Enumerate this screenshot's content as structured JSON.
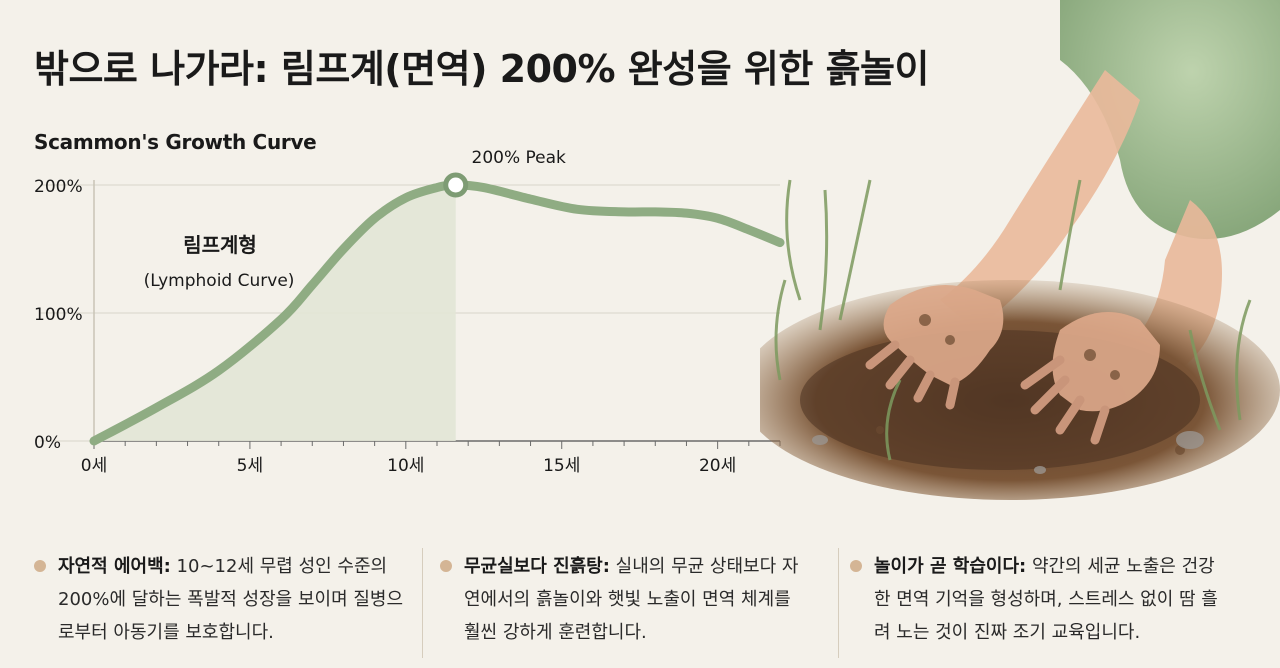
{
  "header": {
    "title": "밖으로 나가라: 림프계(면역) 200% 완성을 위한 흙놀이"
  },
  "chart_data": {
    "type": "line",
    "title": "Scammon's Growth Curve",
    "x_ticks": [
      "0세",
      "5세",
      "10세",
      "15세",
      "20세"
    ],
    "y_ticks": [
      "0%",
      "100%",
      "200%"
    ],
    "xlim": [
      0,
      22
    ],
    "ylim": [
      0,
      200
    ],
    "series": [
      {
        "name": "림프계형",
        "name_en": "(Lymphoid Curve)",
        "x": [
          0,
          2,
          4,
          6,
          7,
          8,
          9,
          10,
          11,
          11.6,
          12.5,
          14,
          15.5,
          17,
          18,
          19,
          20,
          21,
          22
        ],
        "y": [
          0,
          26,
          55,
          95,
          122,
          150,
          174,
          190,
          198,
          200,
          198,
          189,
          181,
          179,
          179,
          178,
          174,
          165,
          155
        ]
      }
    ],
    "peak": {
      "x": 11.6,
      "y": 200,
      "label": "200% Peak"
    },
    "grid": true
  },
  "bullets": [
    {
      "head": "자연적 에어백:",
      "body": " 10~12세 무렵 성인 수준의 200%에 달하는 폭발적 성장을 보이며 질병으로부터 아동기를 보호합니다."
    },
    {
      "head": "무균실보다 진흙탕:",
      "body": " 실내의 무균 상태보다 자연에서의 흙놀이와 햇빛 노출이 면역 체계를 훨씬 강하게 훈련합니다."
    },
    {
      "head": "놀이가 곧 학습이다:",
      "body": " 약간의 세균 노출은 건강한 면역 기억을 형성하며, 스트레스 없이 땀 흘려 노는 것이 진짜 조기 교육입니다."
    }
  ],
  "colors": {
    "curve": "#8fac83",
    "fill": "#dfe3d3",
    "bullet_dot": "#d4b595"
  }
}
